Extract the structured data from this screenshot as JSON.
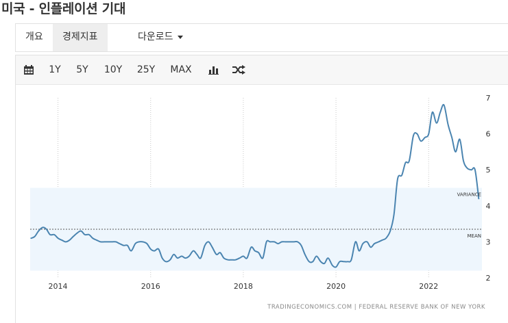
{
  "page": {
    "title": "미국 - 인플레이션 기대"
  },
  "tabs": [
    {
      "label": "개요"
    },
    {
      "label": "경제지표"
    },
    {
      "label": "다운로드"
    }
  ],
  "toolbar": {
    "ranges": [
      "1Y",
      "5Y",
      "10Y",
      "25Y",
      "MAX"
    ],
    "icons": [
      "calendar-icon",
      "bar-chart-icon",
      "shuffle-icon"
    ]
  },
  "chart_data": {
    "type": "line",
    "title": "",
    "xlabel": "",
    "ylabel": "",
    "source": "TRADINGECONOMICS.COM | FEDERAL RESERVE BANK OF NEW YORK",
    "xlim": [
      2013.4,
      2023.15
    ],
    "ylim": [
      2,
      7
    ],
    "x_ticks": [
      "2014",
      "2016",
      "2018",
      "2020",
      "2022"
    ],
    "x_tick_values": [
      2014,
      2016,
      2018,
      2020,
      2022
    ],
    "y_ticks": [
      "2",
      "3",
      "4",
      "5",
      "6",
      "7"
    ],
    "y_tick_values": [
      2,
      3,
      4,
      5,
      6,
      7
    ],
    "grid": true,
    "line_color": "#4a84b0",
    "band_color": "#eef6fd",
    "annotations": [
      {
        "label": "VARIANCE",
        "range": [
          2.2,
          4.5
        ]
      },
      {
        "label": "MEAN",
        "value": 3.35
      }
    ],
    "series": [
      {
        "points": [
          [
            2013.42,
            3.1
          ],
          [
            2013.5,
            3.15
          ],
          [
            2013.58,
            3.3
          ],
          [
            2013.67,
            3.4
          ],
          [
            2013.75,
            3.35
          ],
          [
            2013.83,
            3.2
          ],
          [
            2013.92,
            3.2
          ],
          [
            2014.0,
            3.1
          ],
          [
            2014.08,
            3.05
          ],
          [
            2014.17,
            3.0
          ],
          [
            2014.25,
            3.05
          ],
          [
            2014.33,
            3.15
          ],
          [
            2014.42,
            3.25
          ],
          [
            2014.5,
            3.3
          ],
          [
            2014.58,
            3.2
          ],
          [
            2014.67,
            3.2
          ],
          [
            2014.75,
            3.1
          ],
          [
            2014.83,
            3.05
          ],
          [
            2014.92,
            3.0
          ],
          [
            2015.0,
            3.0
          ],
          [
            2015.08,
            3.0
          ],
          [
            2015.17,
            3.0
          ],
          [
            2015.25,
            3.0
          ],
          [
            2015.33,
            2.95
          ],
          [
            2015.42,
            2.9
          ],
          [
            2015.5,
            2.9
          ],
          [
            2015.58,
            2.75
          ],
          [
            2015.67,
            2.95
          ],
          [
            2015.75,
            3.0
          ],
          [
            2015.83,
            3.0
          ],
          [
            2015.92,
            2.95
          ],
          [
            2016.0,
            2.8
          ],
          [
            2016.08,
            2.75
          ],
          [
            2016.17,
            2.8
          ],
          [
            2016.25,
            2.55
          ],
          [
            2016.33,
            2.45
          ],
          [
            2016.42,
            2.5
          ],
          [
            2016.5,
            2.65
          ],
          [
            2016.58,
            2.55
          ],
          [
            2016.67,
            2.6
          ],
          [
            2016.75,
            2.55
          ],
          [
            2016.83,
            2.6
          ],
          [
            2016.92,
            2.75
          ],
          [
            2017.0,
            2.65
          ],
          [
            2017.08,
            2.55
          ],
          [
            2017.17,
            2.9
          ],
          [
            2017.25,
            3.0
          ],
          [
            2017.33,
            2.85
          ],
          [
            2017.42,
            2.65
          ],
          [
            2017.5,
            2.7
          ],
          [
            2017.58,
            2.55
          ],
          [
            2017.67,
            2.5
          ],
          [
            2017.75,
            2.5
          ],
          [
            2017.83,
            2.5
          ],
          [
            2017.92,
            2.55
          ],
          [
            2018.0,
            2.6
          ],
          [
            2018.08,
            2.55
          ],
          [
            2018.17,
            2.85
          ],
          [
            2018.25,
            2.75
          ],
          [
            2018.33,
            2.7
          ],
          [
            2018.42,
            2.55
          ],
          [
            2018.5,
            3.0
          ],
          [
            2018.58,
            3.0
          ],
          [
            2018.67,
            3.0
          ],
          [
            2018.75,
            2.95
          ],
          [
            2018.83,
            3.0
          ],
          [
            2018.92,
            3.0
          ],
          [
            2019.0,
            3.0
          ],
          [
            2019.08,
            3.0
          ],
          [
            2019.17,
            3.0
          ],
          [
            2019.25,
            2.9
          ],
          [
            2019.33,
            2.65
          ],
          [
            2019.42,
            2.45
          ],
          [
            2019.5,
            2.45
          ],
          [
            2019.58,
            2.6
          ],
          [
            2019.67,
            2.45
          ],
          [
            2019.75,
            2.4
          ],
          [
            2019.83,
            2.55
          ],
          [
            2019.92,
            2.35
          ],
          [
            2020.0,
            2.3
          ],
          [
            2020.08,
            2.45
          ],
          [
            2020.17,
            2.45
          ],
          [
            2020.25,
            2.45
          ],
          [
            2020.33,
            2.5
          ],
          [
            2020.42,
            3.0
          ],
          [
            2020.5,
            2.75
          ],
          [
            2020.58,
            2.95
          ],
          [
            2020.67,
            3.0
          ],
          [
            2020.75,
            2.85
          ],
          [
            2020.83,
            2.95
          ],
          [
            2020.92,
            3.0
          ],
          [
            2021.0,
            3.05
          ],
          [
            2021.08,
            3.1
          ],
          [
            2021.17,
            3.3
          ],
          [
            2021.25,
            3.75
          ],
          [
            2021.33,
            4.75
          ],
          [
            2021.42,
            4.85
          ],
          [
            2021.5,
            5.2
          ],
          [
            2021.58,
            5.25
          ],
          [
            2021.67,
            5.95
          ],
          [
            2021.75,
            6.0
          ],
          [
            2021.83,
            5.8
          ],
          [
            2021.92,
            5.9
          ],
          [
            2022.0,
            6.0
          ],
          [
            2022.08,
            6.6
          ],
          [
            2022.17,
            6.3
          ],
          [
            2022.25,
            6.6
          ],
          [
            2022.33,
            6.8
          ],
          [
            2022.42,
            6.25
          ],
          [
            2022.5,
            5.9
          ],
          [
            2022.58,
            5.5
          ],
          [
            2022.67,
            5.85
          ],
          [
            2022.75,
            5.25
          ],
          [
            2022.83,
            5.05
          ],
          [
            2022.92,
            5.0
          ],
          [
            2023.0,
            5.0
          ],
          [
            2023.08,
            4.2
          ]
        ]
      }
    ]
  }
}
